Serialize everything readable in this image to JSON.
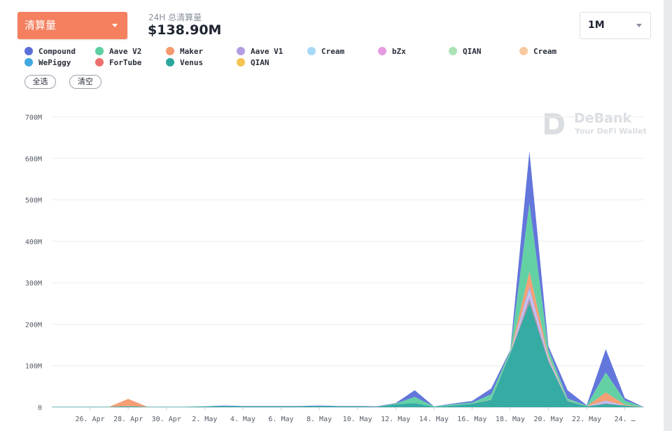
{
  "header": {
    "metric_selector": {
      "label": "清算量"
    },
    "kpi": {
      "label": "24H 总清算量",
      "value": "$138.90M"
    },
    "range_selector": {
      "label": "1M"
    }
  },
  "legend": [
    {
      "name": "Compound",
      "color": "#5b6fd9"
    },
    {
      "name": "Aave V2",
      "color": "#5ccfa0"
    },
    {
      "name": "Maker",
      "color": "#f49a6e"
    },
    {
      "name": "Aave V1",
      "color": "#b49ce0"
    },
    {
      "name": "Cream",
      "color": "#a7d8f5"
    },
    {
      "name": "bZx",
      "color": "#e59be0"
    },
    {
      "name": "QIAN",
      "color": "#a9e3b4"
    },
    {
      "name": "Cream",
      "color": "#f8c9a0"
    },
    {
      "name": "WePiggy",
      "color": "#3fa9e0"
    },
    {
      "name": "ForTube",
      "color": "#ee6f6f"
    },
    {
      "name": "Venus",
      "color": "#2aa79f"
    },
    {
      "name": "QIAN",
      "color": "#f6c454"
    }
  ],
  "buttons": {
    "select_all": "全选",
    "clear": "清空"
  },
  "watermark": {
    "name": "DeBank",
    "tagline": "Your DeFi Wallet"
  },
  "chart_data": {
    "type": "area",
    "stacked": true,
    "x": [
      "24. Apr",
      "25. Apr",
      "26. Apr",
      "27. Apr",
      "28. Apr",
      "29. Apr",
      "30. Apr",
      "1. May",
      "2. May",
      "3. May",
      "4. May",
      "5. May",
      "6. May",
      "7. May",
      "8. May",
      "9. May",
      "10. May",
      "11. May",
      "12. May",
      "13. May",
      "14. May",
      "15. May",
      "16. May",
      "17. May",
      "18. May",
      "19. May",
      "20. May",
      "21. May",
      "22. May",
      "23. May",
      "24. May",
      "25. May"
    ],
    "x_tick_labels": [
      "26. Apr",
      "28. Apr",
      "30. Apr",
      "2. May",
      "4. May",
      "6. May",
      "8. May",
      "10. May",
      "12. May",
      "14. May",
      "16. May",
      "18. May",
      "20. May",
      "22. May",
      "24. …"
    ],
    "ylim": [
      0,
      700
    ],
    "y_ticks": [
      "0",
      "100M",
      "200M",
      "300M",
      "400M",
      "500M",
      "600M",
      "700M"
    ],
    "grid": true,
    "unit": "M",
    "series": [
      {
        "name": "Venus",
        "values": [
          1,
          1,
          1,
          1,
          2,
          1,
          1,
          1,
          2,
          3,
          2,
          2,
          2,
          2,
          3,
          2,
          2,
          1,
          7,
          10,
          1,
          4,
          8,
          18,
          130,
          252,
          110,
          15,
          2,
          8,
          4,
          0
        ]
      },
      {
        "name": "ForTube",
        "values": [
          0,
          0,
          0,
          0,
          0,
          0,
          0,
          0,
          0,
          0,
          0,
          0,
          0,
          0,
          0,
          0,
          0,
          0,
          0,
          0,
          0,
          0,
          0,
          0,
          0,
          5,
          2,
          0,
          0,
          1,
          0,
          0
        ]
      },
      {
        "name": "WePiggy",
        "values": [
          0,
          0,
          0,
          0,
          0,
          0,
          0,
          0,
          0,
          0,
          0,
          0,
          0,
          0,
          0,
          0,
          0,
          0,
          0,
          0,
          0,
          0,
          0,
          0,
          0,
          5,
          2,
          0,
          0,
          1,
          0,
          0
        ]
      },
      {
        "name": "bZx",
        "values": [
          0,
          0,
          0,
          0,
          0,
          0,
          0,
          0,
          0,
          0,
          0,
          0,
          0,
          0,
          0,
          0,
          0,
          0,
          0,
          0,
          0,
          0,
          0,
          0,
          0,
          10,
          2,
          0,
          0,
          2,
          0,
          0
        ]
      },
      {
        "name": "Cream",
        "values": [
          0,
          0,
          0,
          0,
          0,
          0,
          0,
          0,
          0,
          0,
          0,
          0,
          0,
          0,
          0,
          0,
          0,
          0,
          0,
          0,
          0,
          0,
          0,
          0,
          0,
          10,
          2,
          0,
          0,
          2,
          0,
          0
        ]
      },
      {
        "name": "Aave V1",
        "values": [
          0,
          0,
          0,
          0,
          0,
          0,
          0,
          0,
          0,
          0,
          0,
          0,
          0,
          0,
          0,
          0,
          0,
          0,
          0,
          0,
          0,
          0,
          0,
          0,
          0,
          10,
          2,
          0,
          0,
          2,
          0,
          0
        ]
      },
      {
        "name": "Maker",
        "values": [
          0,
          0,
          0,
          0,
          18,
          0,
          0,
          0,
          0,
          0,
          0,
          0,
          0,
          0,
          0,
          0,
          0,
          0,
          0,
          0,
          0,
          0,
          0,
          1,
          1,
          35,
          4,
          1,
          0,
          20,
          2,
          0
        ]
      },
      {
        "name": "Aave V2",
        "values": [
          0,
          0,
          0,
          0,
          0,
          0,
          0,
          0,
          0,
          0,
          0,
          0,
          0,
          0,
          0,
          0,
          0,
          0,
          2,
          15,
          1,
          3,
          3,
          12,
          5,
          165,
          15,
          5,
          2,
          48,
          10,
          0
        ]
      },
      {
        "name": "Compound",
        "values": [
          0,
          0,
          0,
          0,
          0,
          0,
          0,
          0,
          0,
          1,
          1,
          1,
          1,
          1,
          1,
          1,
          1,
          1,
          1,
          16,
          0,
          2,
          4,
          14,
          2,
          125,
          8,
          20,
          1,
          56,
          6,
          0
        ]
      }
    ]
  }
}
